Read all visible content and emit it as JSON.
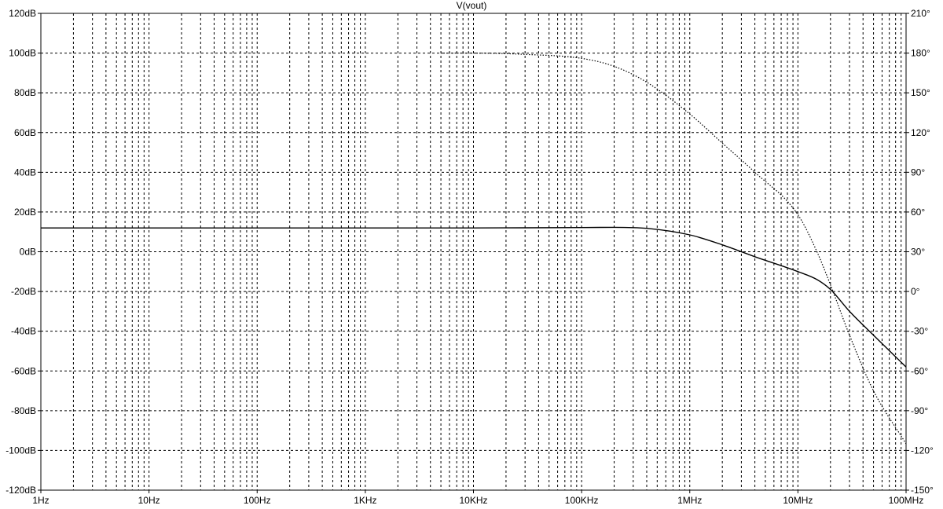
{
  "chart_data": {
    "type": "line",
    "title": "V(vout)",
    "x_scale": "log",
    "xlim": [
      1,
      100000000
    ],
    "x_ticks": [
      {
        "value": 1,
        "label": "1Hz"
      },
      {
        "value": 10,
        "label": "10Hz"
      },
      {
        "value": 100,
        "label": "100Hz"
      },
      {
        "value": 1000,
        "label": "1KHz"
      },
      {
        "value": 10000,
        "label": "10KHz"
      },
      {
        "value": 100000,
        "label": "100KHz"
      },
      {
        "value": 1000000,
        "label": "1MHz"
      },
      {
        "value": 10000000,
        "label": "10MHz"
      },
      {
        "value": 100000000,
        "label": "100MHz"
      }
    ],
    "y_left": {
      "lim": [
        -120,
        120
      ],
      "ticks": [
        {
          "value": 120,
          "label": "120dB"
        },
        {
          "value": 100,
          "label": "100dB"
        },
        {
          "value": 80,
          "label": "80dB"
        },
        {
          "value": 60,
          "label": "60dB"
        },
        {
          "value": 40,
          "label": "40dB"
        },
        {
          "value": 20,
          "label": "20dB"
        },
        {
          "value": 0,
          "label": "0dB"
        },
        {
          "value": -20,
          "label": "-20dB"
        },
        {
          "value": -40,
          "label": "-40dB"
        },
        {
          "value": -60,
          "label": "-60dB"
        },
        {
          "value": -80,
          "label": "-80dB"
        },
        {
          "value": -100,
          "label": "-100dB"
        },
        {
          "value": -120,
          "label": "-120dB"
        }
      ]
    },
    "y_right": {
      "lim": [
        -150,
        210
      ],
      "ticks": [
        {
          "value": 210,
          "label": "210°"
        },
        {
          "value": 180,
          "label": "180°"
        },
        {
          "value": 150,
          "label": "150°"
        },
        {
          "value": 120,
          "label": "120°"
        },
        {
          "value": 90,
          "label": "90°"
        },
        {
          "value": 60,
          "label": "60°"
        },
        {
          "value": 30,
          "label": "30°"
        },
        {
          "value": 0,
          "label": "0°"
        },
        {
          "value": -30,
          "label": "-30°"
        },
        {
          "value": -60,
          "label": "-60°"
        },
        {
          "value": -90,
          "label": "-90°"
        },
        {
          "value": -120,
          "label": "-120°"
        },
        {
          "value": -150,
          "label": "-150°"
        }
      ]
    },
    "grid": true,
    "series": [
      {
        "axis": "left",
        "style": "solid",
        "x": [
          1,
          10,
          100,
          1000,
          10000,
          100000,
          200000,
          400000,
          1000000,
          2000000,
          4000000,
          10000000,
          15000000,
          20000000,
          30000000,
          50000000,
          100000000
        ],
        "values": [
          12,
          12,
          12,
          12,
          12,
          12.2,
          12.3,
          11.8,
          8.5,
          3.5,
          -2.5,
          -10,
          -14,
          -19,
          -30,
          -42,
          -58
        ]
      },
      {
        "axis": "right",
        "style": "dotted",
        "x": [
          5000,
          10000,
          30000,
          100000,
          200000,
          400000,
          1000000,
          2000000,
          4000000,
          10000000,
          15000000,
          20000000,
          30000000,
          50000000,
          100000000
        ],
        "values": [
          180,
          180,
          179,
          176,
          170,
          158,
          134,
          112,
          90,
          58,
          30,
          5,
          -33,
          -75,
          -115
        ]
      }
    ]
  }
}
